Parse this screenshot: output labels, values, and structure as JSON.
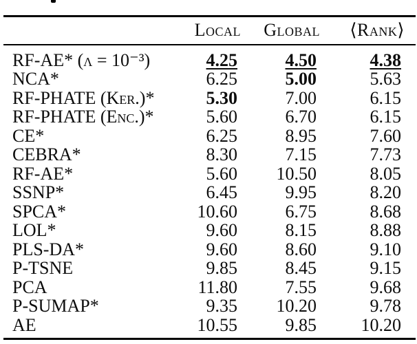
{
  "table": {
    "columns": [
      "Local",
      "Global",
      "⟨Rank⟩"
    ],
    "rows": [
      {
        "label": "RF-AE* (λ = 10⁻³)",
        "local": "4.25",
        "global": "4.50",
        "rank": "4.38"
      },
      {
        "label": "NCA*",
        "local": "6.25",
        "global": "5.00",
        "rank": "5.63"
      },
      {
        "label": "RF-PHATE (Ker.)*",
        "local": "5.30",
        "global": "7.00",
        "rank": "6.15"
      },
      {
        "label": "RF-PHATE (Enc.)*",
        "local": "5.60",
        "global": "6.70",
        "rank": "6.15"
      },
      {
        "label": "CE*",
        "local": "6.25",
        "global": "8.95",
        "rank": "7.60"
      },
      {
        "label": "CEBRA*",
        "local": "8.30",
        "global": "7.15",
        "rank": "7.73"
      },
      {
        "label": "RF-AE*",
        "local": "5.60",
        "global": "10.50",
        "rank": "8.05"
      },
      {
        "label": "SSNP*",
        "local": "6.45",
        "global": "9.95",
        "rank": "8.20"
      },
      {
        "label": "SPCA*",
        "local": "10.60",
        "global": "6.75",
        "rank": "8.68"
      },
      {
        "label": "LOL*",
        "local": "9.60",
        "global": "8.15",
        "rank": "8.88"
      },
      {
        "label": "PLS-DA*",
        "local": "9.60",
        "global": "8.60",
        "rank": "9.10"
      },
      {
        "label": "P-TSNE",
        "local": "9.85",
        "global": "8.45",
        "rank": "9.15"
      },
      {
        "label": "PCA",
        "local": "11.80",
        "global": "7.55",
        "rank": "9.68"
      },
      {
        "label": "P-SUMAP*",
        "local": "9.35",
        "global": "10.20",
        "rank": "9.78"
      },
      {
        "label": "AE",
        "local": "10.55",
        "global": "9.85",
        "rank": "10.20"
      }
    ]
  }
}
